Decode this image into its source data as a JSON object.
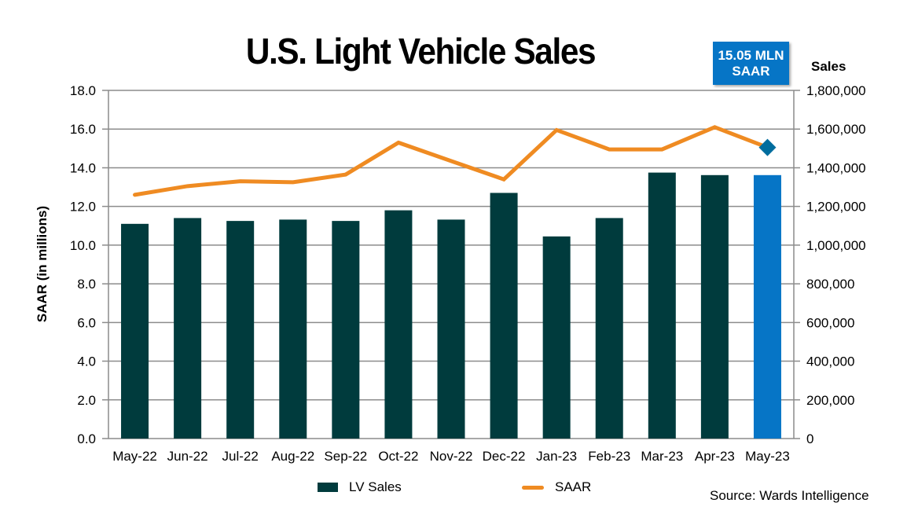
{
  "chart_data": {
    "type": "bar",
    "title": "U.S. Light Vehicle Sales",
    "categories": [
      "May-22",
      "Jun-22",
      "Jul-22",
      "Aug-22",
      "Sep-22",
      "Oct-22",
      "Nov-22",
      "Dec-22",
      "Jan-23",
      "Feb-23",
      "Mar-23",
      "Apr-23",
      "May-23"
    ],
    "series": [
      {
        "name": "LV Sales",
        "type": "bar",
        "axis": "right",
        "color": "#003B3D",
        "highlight_last_color": "#0675C6",
        "values": [
          1110000,
          1140000,
          1125000,
          1132000,
          1125000,
          1180000,
          1132000,
          1270000,
          1045000,
          1140000,
          1375000,
          1362000,
          1362000
        ]
      },
      {
        "name": "SAAR",
        "type": "line",
        "axis": "left",
        "color": "#EF8B22",
        "last_marker_color": "#006D9E",
        "values": [
          12.6,
          13.05,
          13.3,
          13.25,
          13.65,
          15.3,
          14.35,
          13.4,
          15.95,
          14.95,
          14.95,
          16.1,
          15.05
        ]
      }
    ],
    "ylabel": "SAAR (in millions)",
    "ylim": [
      0,
      18
    ],
    "yticks": [
      "0.0",
      "2.0",
      "4.0",
      "6.0",
      "8.0",
      "10.0",
      "12.0",
      "14.0",
      "16.0",
      "18.0"
    ],
    "y2label": "Sales",
    "y2lim": [
      0,
      1800000
    ],
    "y2ticks": [
      "0",
      "200,000",
      "400,000",
      "600,000",
      "800,000",
      "1,000,000",
      "1,200,000",
      "1,400,000",
      "1,600,000",
      "1,800,000"
    ],
    "grid": true,
    "legend": "bottom-center",
    "annotation": {
      "line1": "15.05 MLN",
      "line2": "SAAR"
    },
    "source": "Source: Wards Intelligence"
  }
}
